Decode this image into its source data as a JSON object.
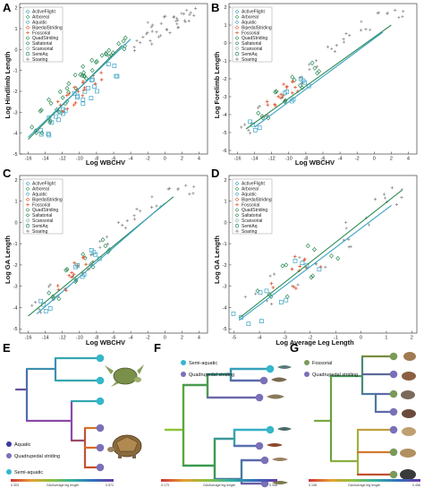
{
  "panels": {
    "A": {
      "label": "A",
      "xlabel": "Log WBCHV",
      "ylabel": "Log Hindlimb Length"
    },
    "B": {
      "label": "B",
      "xlabel": "Log WBCHV",
      "ylabel": "Log Forelimb Length"
    },
    "C": {
      "label": "C",
      "xlabel": "Log WBCHV",
      "ylabel": "Log GA Length"
    },
    "D": {
      "label": "D",
      "xlabel": "Log Average Leg Length",
      "ylabel": "Log GA Length"
    },
    "E": {
      "label": "E"
    },
    "F": {
      "label": "F"
    },
    "G": {
      "label": "G"
    }
  },
  "legend_items": [
    "ActiveFlight",
    "Arboreal",
    "Aquatic",
    "BipedalStriding",
    "Fossorial",
    "QuadStriding",
    "Saltatorial",
    "Scansorial",
    "SemiAq",
    "Soaring"
  ],
  "legend_colors": {
    "ActiveFlight": "#3aa0b8",
    "Arboreal": "#3a9b6a",
    "Aquatic": "#39a2c4",
    "BipedalStriding": "#e0603a",
    "Fossorial": "#e0603a",
    "QuadStriding": "#2e8b57",
    "Saltatorial": "#2e8b57",
    "Scansorial": "#7fb0a0",
    "SemiAq": "#2a8a5a",
    "Soaring": "#888888"
  },
  "tree_labels": {
    "E": [
      "Aquatic",
      "Quadrupedal striding",
      "Semi-aquatic"
    ],
    "F": [
      "Semi-aquatic",
      "Quadrupedal striding"
    ],
    "G": [
      "Fossorial",
      "Quadrupedal striding"
    ]
  },
  "colorbar_label": "GA/Average leg length",
  "colorbar_ticks": {
    "E": [
      "0.303",
      "0.572"
    ],
    "F": [
      "0.173",
      "0.398"
    ],
    "G": [
      "0.198",
      "0.456"
    ]
  },
  "chart_data": [
    {
      "type": "scatter",
      "panel": "A",
      "xlabel": "Log WBCHV",
      "ylabel": "Log Hindlimb Length",
      "xlim": [
        -17,
        5
      ],
      "ylim": [
        -5,
        2.2
      ],
      "x_ticks": [
        -16,
        -14,
        -12,
        -10,
        -8,
        -6,
        -4,
        -2,
        0,
        2,
        4
      ],
      "y_ticks": [
        -5,
        -4,
        -3,
        -2,
        -1,
        0,
        1,
        2
      ],
      "series": [
        {
          "name": "Soaring",
          "points": [
            [
              -2,
              0.5
            ],
            [
              -1,
              0.9
            ],
            [
              0,
              1.1
            ],
            [
              1,
              1.3
            ],
            [
              2,
              1.5
            ],
            [
              3,
              1.7
            ],
            [
              -3,
              0.2
            ],
            [
              -1.5,
              1.0
            ],
            [
              0.5,
              1.3
            ],
            [
              2.5,
              1.6
            ]
          ]
        },
        {
          "name": "QuadStriding",
          "points": [
            [
              -15,
              -3.7
            ],
            [
              -14,
              -3.2
            ],
            [
              -13,
              -2.7
            ],
            [
              -12,
              -2.3
            ],
            [
              -11,
              -1.8
            ],
            [
              -10,
              -1.5
            ],
            [
              -9,
              -1.1
            ],
            [
              -8,
              -0.7
            ],
            [
              -7,
              -0.3
            ],
            [
              -6,
              0.0
            ],
            [
              -5,
              0.3
            ]
          ]
        },
        {
          "name": "Aquatic",
          "points": [
            [
              -14,
              -3.8
            ],
            [
              -12,
              -3.0
            ],
            [
              -10,
              -2.4
            ],
            [
              -8,
              -1.7
            ],
            [
              -6,
              -1.0
            ],
            [
              -13,
              -3.5
            ],
            [
              -9,
              -2.1
            ]
          ]
        },
        {
          "name": "Fossorial",
          "points": [
            [
              -12,
              -2.7
            ],
            [
              -11,
              -2.4
            ],
            [
              -10,
              -2.1
            ],
            [
              -9,
              -1.8
            ],
            [
              -8,
              -1.4
            ]
          ]
        }
      ],
      "fit_lines": [
        {
          "name": "QuadStriding",
          "from": [
            -16,
            -4.3
          ],
          "to": [
            -5,
            0.2
          ]
        },
        {
          "name": "Aquatic",
          "from": [
            -16,
            -4.2
          ],
          "to": [
            -4,
            0.5
          ]
        }
      ]
    },
    {
      "type": "scatter",
      "panel": "B",
      "xlabel": "Log WBCHV",
      "ylabel": "Log Forelimb Length",
      "xlim": [
        -17,
        5
      ],
      "ylim": [
        -6.2,
        2.2
      ],
      "x_ticks": [
        -16,
        -14,
        -12,
        -10,
        -8,
        -6,
        -4,
        -2,
        0,
        2,
        4
      ],
      "y_ticks": [
        -6,
        -5,
        -4,
        -3,
        -2,
        -1,
        0,
        1,
        2
      ],
      "series": [
        {
          "name": "Soaring",
          "points": [
            [
              -15,
              -4.8
            ],
            [
              -13,
              -3.8
            ],
            [
              -11,
              -2.9
            ],
            [
              -9,
              -2.0
            ],
            [
              -7,
              -1.2
            ],
            [
              -5,
              -0.4
            ],
            [
              -3,
              0.3
            ],
            [
              -1,
              0.9
            ],
            [
              1,
              1.4
            ],
            [
              3,
              1.7
            ]
          ]
        },
        {
          "name": "QuadStriding",
          "points": [
            [
              -13,
              -3.9
            ],
            [
              -11,
              -3.0
            ],
            [
              -9,
              -2.2
            ],
            [
              -7,
              -1.4
            ]
          ]
        },
        {
          "name": "Fossorial",
          "points": [
            [
              -12,
              -3.2
            ],
            [
              -11,
              -3.0
            ],
            [
              -10,
              -2.6
            ],
            [
              -9,
              -2.4
            ]
          ]
        },
        {
          "name": "Aquatic",
          "points": [
            [
              -14,
              -4.6
            ],
            [
              -10,
              -3.0
            ],
            [
              -8,
              -2.3
            ]
          ]
        }
      ],
      "fit_lines": [
        {
          "name": "QuadStriding",
          "from": [
            -15,
            -4.8
          ],
          "to": [
            2,
            1.0
          ]
        },
        {
          "name": "Aquatic",
          "from": [
            -14,
            -4.7
          ],
          "to": [
            1,
            0.6
          ]
        }
      ]
    },
    {
      "type": "scatter",
      "panel": "C",
      "xlabel": "Log WBCHV",
      "ylabel": "Log GA Length",
      "xlim": [
        -17,
        5
      ],
      "ylim": [
        -5.2,
        2.2
      ],
      "x_ticks": [
        -16,
        -14,
        -12,
        -10,
        -8,
        -6,
        -4,
        -2,
        0,
        2,
        4
      ],
      "y_ticks": [
        -5,
        -4,
        -3,
        -2,
        -1,
        0,
        1,
        2
      ],
      "series": [
        {
          "name": "Soaring",
          "points": [
            [
              -15,
              -4.0
            ],
            [
              -13,
              -3.2
            ],
            [
              -11,
              -2.4
            ],
            [
              -9,
              -1.6
            ],
            [
              -7,
              -0.9
            ],
            [
              -5,
              -0.2
            ],
            [
              -3,
              0.4
            ],
            [
              -1,
              0.9
            ],
            [
              1,
              1.3
            ],
            [
              3,
              1.6
            ]
          ]
        },
        {
          "name": "QuadStriding",
          "points": [
            [
              -13,
              -3.3
            ],
            [
              -11,
              -2.5
            ],
            [
              -9,
              -1.8
            ],
            [
              -7,
              -1.1
            ]
          ]
        },
        {
          "name": "Fossorial",
          "points": [
            [
              -12,
              -2.9
            ],
            [
              -11,
              -2.5
            ],
            [
              -10,
              -2.2
            ],
            [
              -9,
              -1.9
            ]
          ]
        },
        {
          "name": "Aquatic",
          "points": [
            [
              -14,
              -3.9
            ],
            [
              -10,
              -2.3
            ],
            [
              -8,
              -1.6
            ]
          ]
        }
      ],
      "fit_lines": [
        {
          "name": "QuadStriding",
          "from": [
            -16,
            -4.4
          ],
          "to": [
            1,
            1.2
          ]
        },
        {
          "name": "Aquatic",
          "from": [
            -15,
            -4.3
          ],
          "to": [
            0,
            0.9
          ]
        }
      ]
    },
    {
      "type": "scatter",
      "panel": "D",
      "xlabel": "Log Average Leg Length",
      "ylabel": "Log GA Length",
      "xlim": [
        -5.2,
        2.2
      ],
      "ylim": [
        -5.2,
        2.2
      ],
      "x_ticks": [
        -5,
        -4,
        -3,
        -2,
        -1,
        0,
        1,
        2
      ],
      "y_ticks": [
        -5,
        -4,
        -3,
        -2,
        -1,
        0,
        1,
        2
      ],
      "series": [
        {
          "name": "Soaring",
          "points": [
            [
              -4,
              -3.6
            ],
            [
              -3,
              -2.7
            ],
            [
              -2,
              -1.8
            ],
            [
              -1,
              -0.9
            ],
            [
              0,
              0.0
            ],
            [
              1,
              0.9
            ],
            [
              1.5,
              1.4
            ]
          ]
        },
        {
          "name": "QuadStriding",
          "points": [
            [
              -3.5,
              -3.2
            ],
            [
              -2.5,
              -2.3
            ],
            [
              -1.5,
              -1.4
            ]
          ]
        },
        {
          "name": "Fossorial",
          "points": [
            [
              -3,
              -2.8
            ],
            [
              -2.5,
              -2.2
            ],
            [
              -2,
              -1.9
            ]
          ]
        },
        {
          "name": "Aquatic",
          "points": [
            [
              -4.5,
              -4.5
            ],
            [
              -3.5,
              -3.5
            ],
            [
              -2,
              -2.1
            ]
          ]
        }
      ],
      "fit_lines": [
        {
          "name": "QuadStriding",
          "from": [
            -4.8,
            -4.5
          ],
          "to": [
            1.6,
            1.5
          ]
        },
        {
          "name": "Aquatic",
          "from": [
            -4.8,
            -4.6
          ],
          "to": [
            1.2,
            0.8
          ]
        }
      ]
    }
  ]
}
